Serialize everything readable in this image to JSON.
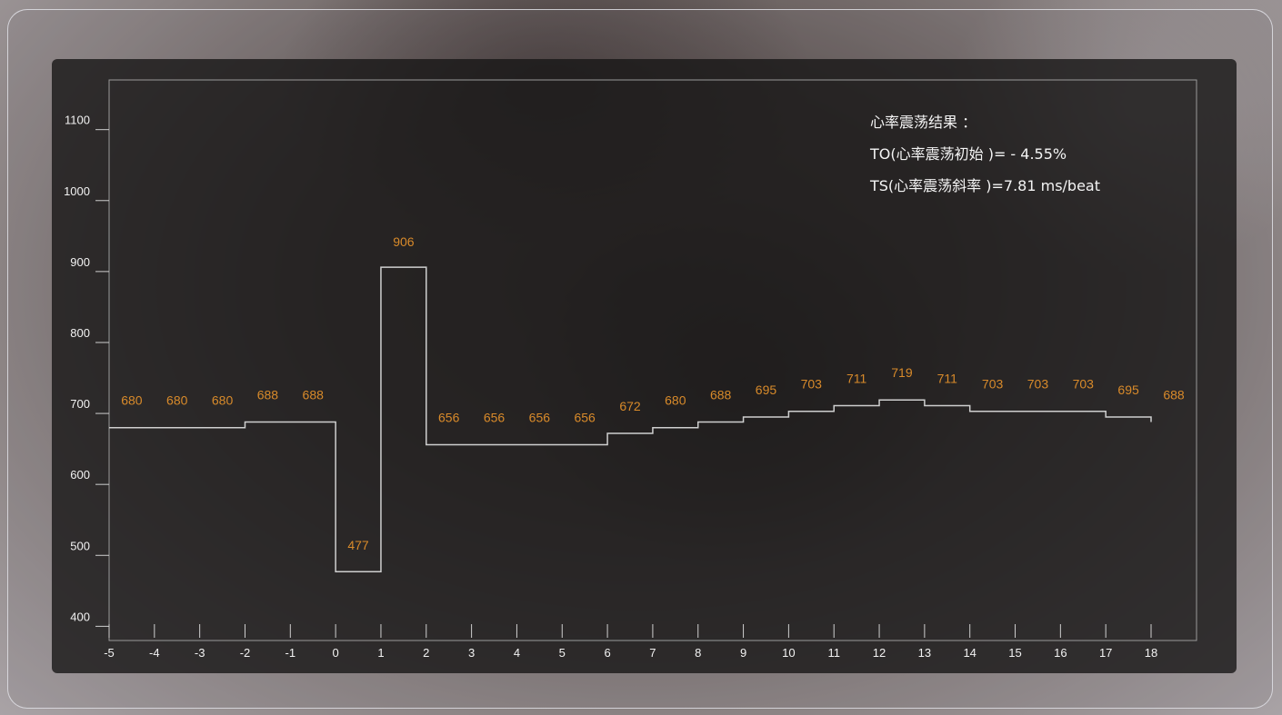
{
  "chart_data": {
    "type": "line",
    "step": true,
    "x": [
      -5,
      -4,
      -3,
      -2,
      -1,
      0,
      1,
      2,
      3,
      4,
      5,
      6,
      7,
      8,
      9,
      10,
      11,
      12,
      13,
      14,
      15,
      16,
      17,
      18
    ],
    "values": [
      680,
      680,
      680,
      688,
      688,
      477,
      906,
      656,
      656,
      656,
      656,
      672,
      680,
      688,
      695,
      703,
      711,
      719,
      711,
      703,
      703,
      703,
      695,
      688
    ],
    "x_ticks": [
      "-5",
      "-4",
      "-3",
      "-2",
      "-1",
      "0",
      "1",
      "2",
      "3",
      "4",
      "5",
      "6",
      "7",
      "8",
      "9",
      "10",
      "11",
      "12",
      "13",
      "14",
      "15",
      "16",
      "17",
      "18"
    ],
    "y_ticks": [
      "400",
      "500",
      "600",
      "700",
      "800",
      "900",
      "1000",
      "1100"
    ],
    "y_tick_values": [
      400,
      500,
      600,
      700,
      800,
      900,
      1000,
      1100
    ],
    "xlim": [
      -5,
      18
    ],
    "ylim": [
      380,
      1170
    ],
    "line_color": "#cfcfcf",
    "label_color": "#d88a2a",
    "annotation": {
      "heading": "心率震荡结果 ：",
      "to_line": "TO(心率震荡初始 )= - 4.55%",
      "ts_line": "TS(心率震荡斜率 )=7.81 ms/beat"
    }
  }
}
